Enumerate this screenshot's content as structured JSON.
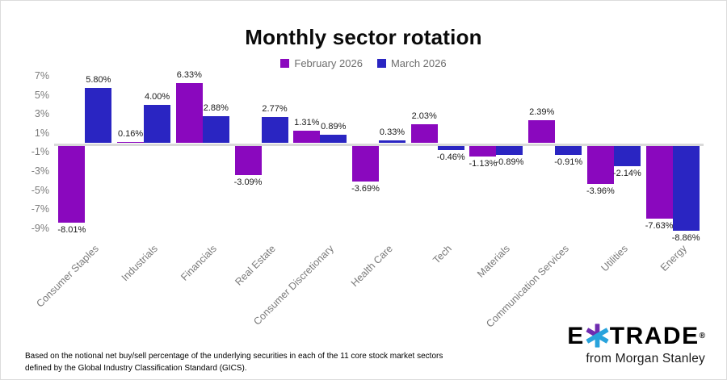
{
  "chart_data": {
    "type": "bar",
    "title": "Monthly sector rotation",
    "categories": [
      "Consumer Staples",
      "Industrials",
      "Financials",
      "Real Estate",
      "Consumer Discretionary",
      "Health Care",
      "Tech",
      "Materials",
      "Communication Services",
      "Utilities",
      "Energy"
    ],
    "series": [
      {
        "name": "February 2026",
        "color": "#8A08BE",
        "values": [
          -8.01,
          0.16,
          6.33,
          -3.09,
          1.31,
          -3.69,
          2.03,
          -1.13,
          2.39,
          -3.96,
          -7.63
        ]
      },
      {
        "name": "March 2026",
        "color": "#2A25C2",
        "values": [
          5.8,
          4.0,
          2.88,
          2.77,
          0.89,
          0.33,
          -0.46,
          -0.89,
          -0.91,
          -2.14,
          -8.86
        ]
      }
    ],
    "y_ticks": [
      "7%",
      "5%",
      "3%",
      "1%",
      "-1%",
      "-3%",
      "-5%",
      "-7%",
      "-9%"
    ],
    "ylim": [
      -9.5,
      7.5
    ],
    "xlabel": "",
    "ylabel": "",
    "grid": false,
    "legend_position": "top",
    "data_labels": true,
    "zero_line_color": "#d9d9d9",
    "axis_text_color": "#7a7a7a"
  },
  "footnote": "Based on the notional net buy/sell percentage of the underlying securities in each of the 11 core stock market sectors defined by the Global Industry Classification Standard (GICS).",
  "logo": {
    "wordmark_e": "E",
    "wordmark_trade": "TRADE",
    "registered": "®",
    "tagline": "from Morgan Stanley",
    "asterisk_purple": "#6F2CB0",
    "asterisk_blue": "#29A3DC"
  }
}
